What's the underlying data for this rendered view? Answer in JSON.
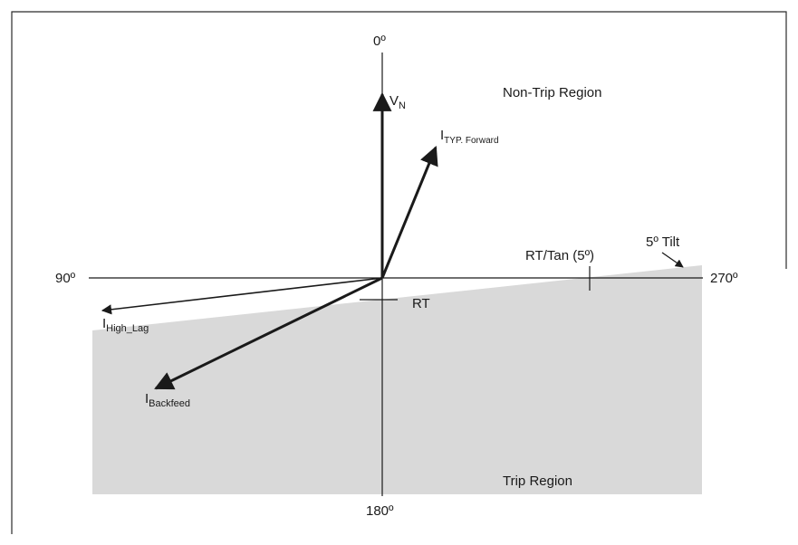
{
  "diagram": {
    "colors": {
      "trip_region_fill": "#d9d9d9",
      "line": "#1a1a1a",
      "frame": "#2b2b2b",
      "background": "#ffffff"
    },
    "axis_labels": {
      "top": "0º",
      "left": "90º",
      "right": "270º",
      "bottom": "180º"
    },
    "regions": {
      "non_trip": "Non-Trip Region",
      "trip": "Trip Region"
    },
    "markers": {
      "rt": "RT",
      "rt_tan": "RT/Tan (5º)",
      "tilt": "5º Tilt"
    },
    "vectors": {
      "vn": {
        "main": "V",
        "sub": "N"
      },
      "typ_forward": {
        "main": "I",
        "sub": "TYP. Forward"
      },
      "high_lag": {
        "main": "I",
        "sub": "High_Lag"
      },
      "backfeed": {
        "main": "I",
        "sub": "Backfeed"
      }
    }
  }
}
